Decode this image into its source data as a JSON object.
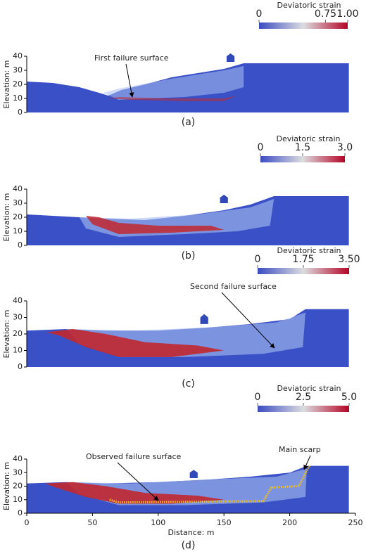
{
  "chart_data": [
    {
      "type": "contour",
      "panel_label": "(a)",
      "y_label": "Elevation: m",
      "xlim": [
        0,
        250
      ],
      "ylim": [
        0,
        40
      ],
      "yticks": [
        0,
        10,
        20,
        30,
        40
      ],
      "colorbar": {
        "title": "Deviatoric strain",
        "clim": [
          0,
          1
        ],
        "ticks": [
          0,
          0.75,
          {
            "value": 1,
            "label": "1.00"
          }
        ]
      },
      "annotations": [
        "First failure surface"
      ]
    },
    {
      "type": "contour",
      "panel_label": "(b)",
      "y_label": "Elevation: m",
      "xlim": [
        0,
        250
      ],
      "ylim": [
        0,
        40
      ],
      "yticks": [
        0,
        10,
        20,
        30,
        40
      ],
      "colorbar": {
        "title": "Deviatoric strain",
        "clim": [
          0,
          3
        ],
        "ticks": [
          0,
          1.5,
          {
            "value": 3,
            "label": "3.0"
          }
        ]
      },
      "annotations": []
    },
    {
      "type": "contour",
      "panel_label": "(c)",
      "y_label": "Elevation: m",
      "xlim": [
        0,
        250
      ],
      "ylim": [
        0,
        40
      ],
      "yticks": [
        0,
        10,
        20,
        30,
        40
      ],
      "colorbar": {
        "title": "Deviatoric strain",
        "clim": [
          0,
          3.5
        ],
        "ticks": [
          0,
          1.75,
          {
            "value": 3.5,
            "label": "3.50"
          }
        ]
      },
      "annotations": [
        "Second failure surface"
      ]
    },
    {
      "type": "contour",
      "panel_label": "(d)",
      "y_label": "Elevation: m",
      "x_label": "Distance: m",
      "xlim": [
        0,
        250
      ],
      "ylim": [
        0,
        40
      ],
      "yticks": [
        0,
        10,
        20,
        30,
        40
      ],
      "xticks": [
        0,
        50,
        100,
        150,
        200,
        250
      ],
      "colorbar": {
        "title": "Deviatoric strain",
        "clim": [
          0,
          5
        ],
        "ticks": [
          0,
          2.5,
          {
            "value": 5,
            "label": "5.0"
          }
        ]
      },
      "annotations": [
        "Observed failure surface",
        "Main scarp"
      ]
    }
  ]
}
